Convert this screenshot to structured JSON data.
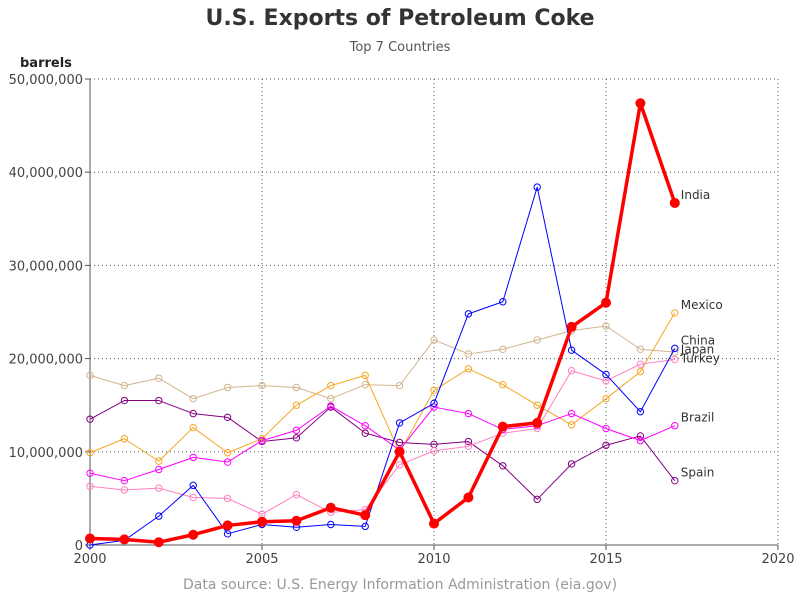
{
  "chart_data": {
    "type": "line",
    "title": "U.S. Exports of Petroleum Coke",
    "subtitle": "Top 7 Countries",
    "ylabel": "barrels",
    "xlabel": "",
    "source": "Data source: U.S. Energy Information Administration (eia.gov)",
    "xlim": [
      2000,
      2020
    ],
    "ylim": [
      0,
      50000000
    ],
    "x_ticks": [
      2000,
      2005,
      2010,
      2015,
      2020
    ],
    "y_ticks": [
      0,
      10000000,
      20000000,
      30000000,
      40000000,
      50000000
    ],
    "y_tick_labels": [
      "0",
      "10,000,000",
      "20,000,000",
      "30,000,000",
      "40,000,000",
      "50,000,000"
    ],
    "grid": true,
    "x": [
      2000,
      2001,
      2002,
      2003,
      2004,
      2005,
      2006,
      2007,
      2008,
      2009,
      2010,
      2011,
      2012,
      2013,
      2014,
      2015,
      2016,
      2017
    ],
    "series": [
      {
        "name": "Japan",
        "color": "#d2b48c",
        "values": [
          18200000,
          17100000,
          17900000,
          15700000,
          16900000,
          17100000,
          16900000,
          15700000,
          17200000,
          17100000,
          22000000,
          20500000,
          21000000,
          22000000,
          23000000,
          23500000,
          21000000,
          20700000
        ]
      },
      {
        "name": "Spain",
        "color": "#800080",
        "values": [
          13500000,
          15500000,
          15500000,
          14100000,
          13700000,
          11100000,
          11500000,
          14800000,
          12000000,
          11000000,
          10800000,
          11100000,
          8500000,
          4900000,
          8700000,
          10700000,
          11700000,
          6900000
        ]
      },
      {
        "name": "Mexico",
        "color": "#f5a623",
        "values": [
          9900000,
          11400000,
          9000000,
          12600000,
          9900000,
          11400000,
          15000000,
          17100000,
          18200000,
          9900000,
          16600000,
          18900000,
          17200000,
          15000000,
          12900000,
          15700000,
          18600000,
          24900000
        ]
      },
      {
        "name": "Turkey",
        "color": "#ff80c0",
        "values": [
          6300000,
          5900000,
          6100000,
          5100000,
          5000000,
          3300000,
          5400000,
          3500000,
          3800000,
          8600000,
          10100000,
          10600000,
          12000000,
          12500000,
          18700000,
          17600000,
          19400000,
          19900000
        ]
      },
      {
        "name": "Brazil",
        "color": "#ff00ff",
        "values": [
          7700000,
          6900000,
          8100000,
          9400000,
          8900000,
          11200000,
          12300000,
          14900000,
          12800000,
          10200000,
          14800000,
          14100000,
          12400000,
          12800000,
          14100000,
          12500000,
          11200000,
          12800000
        ]
      },
      {
        "name": "China",
        "color": "#0000ff",
        "values": [
          0,
          500000,
          3100000,
          6400000,
          1200000,
          2200000,
          1900000,
          2200000,
          2000000,
          13100000,
          15200000,
          24800000,
          26100000,
          38400000,
          20900000,
          18300000,
          14300000,
          21100000
        ]
      },
      {
        "name": "India",
        "color": "#ff0000",
        "values": [
          700000,
          600000,
          300000,
          1100000,
          2100000,
          2500000,
          2600000,
          4000000,
          3200000,
          10000000,
          2300000,
          5100000,
          12700000,
          13100000,
          23400000,
          26000000,
          47400000,
          36700000
        ]
      }
    ]
  }
}
